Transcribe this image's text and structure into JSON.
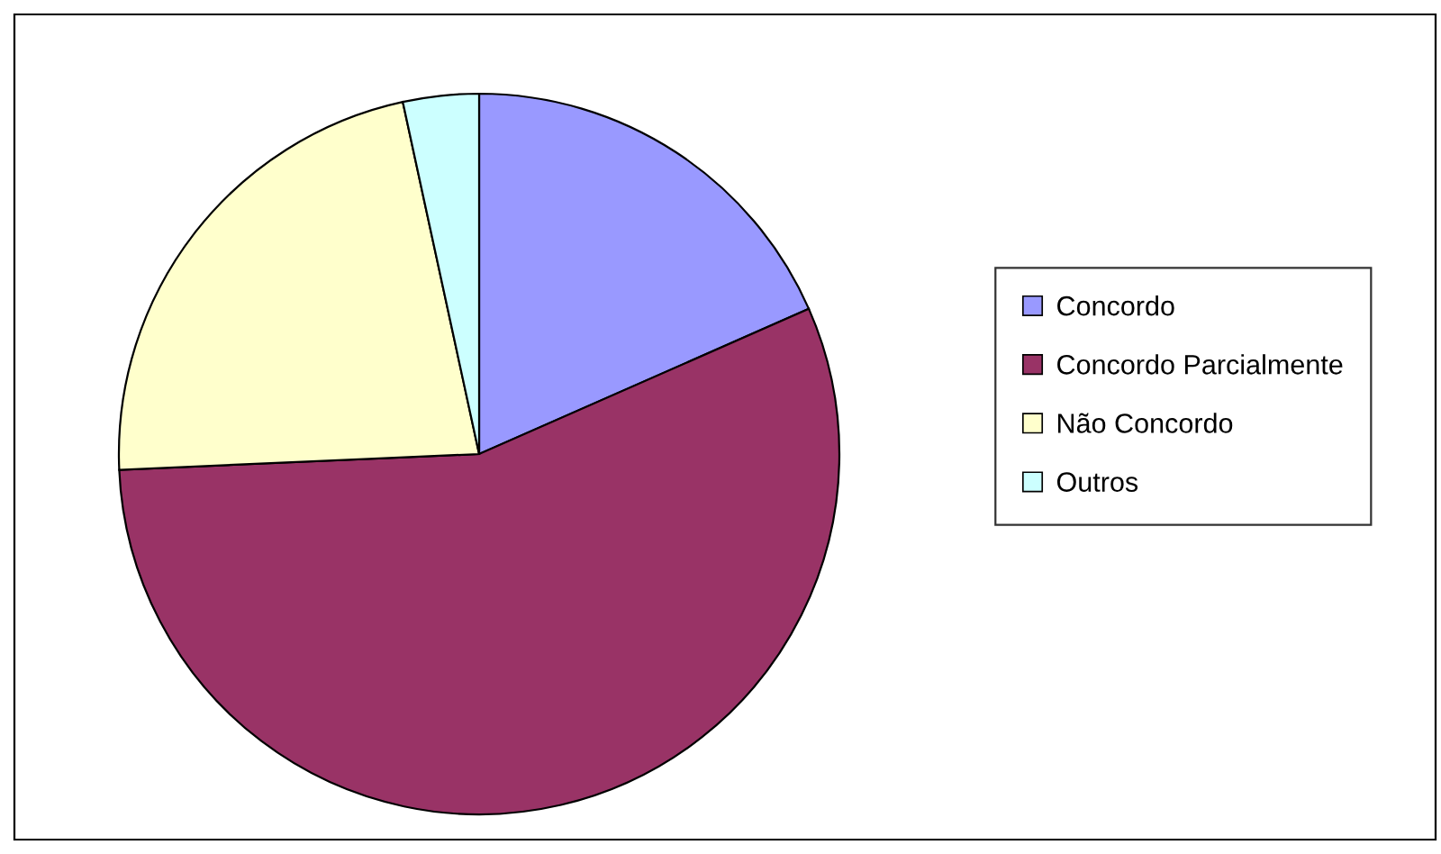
{
  "chart_data": {
    "type": "pie",
    "categories": [
      "Concordo",
      "Concordo Parcialmente",
      "Não Concordo",
      "Outros"
    ],
    "values": [
      18.4,
      55.9,
      22.3,
      3.4
    ],
    "colors": [
      "#9999ff",
      "#993366",
      "#ffffcc",
      "#ccffff"
    ],
    "legend": "right"
  }
}
